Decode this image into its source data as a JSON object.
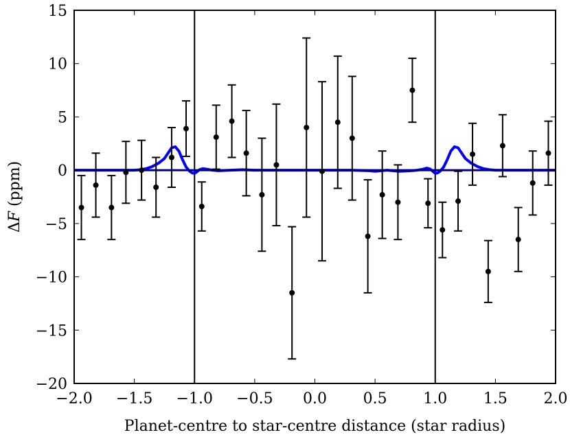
{
  "chart_data": {
    "type": "scatter",
    "title": "",
    "xlabel": "Planet-centre to star-centre distance (star radius)",
    "ylabel": "ΔF (ppm)",
    "ylabel_parts": {
      "delta": "Δ",
      "var": "F",
      "unit": " (ppm)"
    },
    "xlim": [
      -2.0,
      2.0
    ],
    "ylim": [
      -20,
      15
    ],
    "x_ticks": [
      -2.0,
      -1.5,
      -1.0,
      -0.5,
      0.0,
      0.5,
      1.0,
      1.5,
      2.0
    ],
    "x_tick_labels": [
      "−2.0",
      "−1.5",
      "−1.0",
      "−0.5",
      "0.0",
      "0.5",
      "1.0",
      "1.5",
      "2.0"
    ],
    "y_ticks": [
      -20,
      -15,
      -10,
      -5,
      0,
      5,
      10,
      15
    ],
    "y_tick_labels": [
      "−20",
      "−15",
      "−10",
      "−5",
      "0",
      "5",
      "10",
      "15"
    ],
    "grid": false,
    "reference_lines": {
      "horizontal_y": 0,
      "vertical_x": [
        -1.0,
        1.0
      ]
    },
    "series": [
      {
        "kind": "errorbar",
        "color": "#000000",
        "points": [
          {
            "x": -1.94,
            "y": -3.5,
            "err": 3.0
          },
          {
            "x": -1.82,
            "y": -1.4,
            "err": 3.0
          },
          {
            "x": -1.69,
            "y": -3.5,
            "err": 3.0
          },
          {
            "x": -1.57,
            "y": -0.2,
            "err": 2.9
          },
          {
            "x": -1.44,
            "y": 0.0,
            "err": 2.8
          },
          {
            "x": -1.32,
            "y": -1.6,
            "err": 2.8
          },
          {
            "x": -1.19,
            "y": 1.2,
            "err": 2.8
          },
          {
            "x": -1.07,
            "y": 3.9,
            "err": 2.6
          },
          {
            "x": -0.94,
            "y": -3.4,
            "err": 2.3
          },
          {
            "x": -0.82,
            "y": 3.1,
            "err": 3.0
          },
          {
            "x": -0.69,
            "y": 4.6,
            "err": 3.4
          },
          {
            "x": -0.57,
            "y": 1.6,
            "err": 4.0
          },
          {
            "x": -0.44,
            "y": -2.3,
            "err": 5.3
          },
          {
            "x": -0.32,
            "y": 0.5,
            "err": 5.7
          },
          {
            "x": -0.19,
            "y": -11.5,
            "err": 6.2
          },
          {
            "x": -0.07,
            "y": 4.0,
            "err": 8.4
          },
          {
            "x": 0.06,
            "y": -0.1,
            "err": 8.4
          },
          {
            "x": 0.19,
            "y": 4.5,
            "err": 6.2
          },
          {
            "x": 0.31,
            "y": 3.0,
            "err": 5.8
          },
          {
            "x": 0.44,
            "y": -6.2,
            "err": 5.3
          },
          {
            "x": 0.56,
            "y": -2.3,
            "err": 4.1
          },
          {
            "x": 0.69,
            "y": -3.0,
            "err": 3.5
          },
          {
            "x": 0.81,
            "y": 7.5,
            "err": 3.0
          },
          {
            "x": 0.94,
            "y": -3.1,
            "err": 2.3
          },
          {
            "x": 1.06,
            "y": -5.6,
            "err": 2.6
          },
          {
            "x": 1.19,
            "y": -2.9,
            "err": 2.8
          },
          {
            "x": 1.31,
            "y": 1.5,
            "err": 2.9
          },
          {
            "x": 1.44,
            "y": -9.5,
            "err": 2.9
          },
          {
            "x": 1.56,
            "y": 2.3,
            "err": 2.9
          },
          {
            "x": 1.69,
            "y": -6.5,
            "err": 3.0
          },
          {
            "x": 1.81,
            "y": -1.2,
            "err": 3.0
          },
          {
            "x": 1.94,
            "y": 1.6,
            "err": 3.0
          }
        ]
      },
      {
        "kind": "line",
        "color": "#0000ff",
        "x": [
          -2.0,
          -1.5,
          -1.45,
          -1.4,
          -1.35,
          -1.3,
          -1.25,
          -1.22,
          -1.19,
          -1.16,
          -1.13,
          -1.1,
          -1.07,
          -1.04,
          -1.02,
          -1.0,
          -0.98,
          -0.96,
          -0.93,
          -0.9,
          -0.85,
          -0.8,
          -0.7,
          -0.6,
          -0.5,
          -0.3,
          0.0,
          0.3,
          0.45,
          0.5,
          0.55,
          0.6,
          0.7,
          0.8,
          0.85,
          0.9,
          0.93,
          0.96,
          0.98,
          1.0,
          1.02,
          1.04,
          1.07,
          1.1,
          1.13,
          1.16,
          1.19,
          1.22,
          1.25,
          1.3,
          1.35,
          1.4,
          1.45,
          1.5,
          2.0
        ],
        "y": [
          0.0,
          0.0,
          0.05,
          0.15,
          0.35,
          0.65,
          1.1,
          1.6,
          2.1,
          2.2,
          1.8,
          1.0,
          0.3,
          -0.1,
          -0.25,
          -0.3,
          -0.15,
          0.05,
          0.15,
          0.1,
          0.0,
          -0.05,
          0.0,
          0.05,
          0.0,
          0.0,
          0.0,
          0.0,
          -0.05,
          -0.1,
          -0.05,
          0.0,
          -0.1,
          -0.05,
          0.0,
          0.1,
          0.2,
          0.1,
          -0.1,
          -0.3,
          -0.25,
          -0.1,
          0.3,
          1.0,
          1.8,
          2.2,
          2.1,
          1.6,
          1.1,
          0.65,
          0.35,
          0.15,
          0.05,
          0.0,
          0.0
        ]
      },
      {
        "kind": "line",
        "color": "#000080",
        "x": [
          -2.0,
          2.0
        ],
        "y": [
          0.0,
          0.0
        ]
      }
    ]
  }
}
